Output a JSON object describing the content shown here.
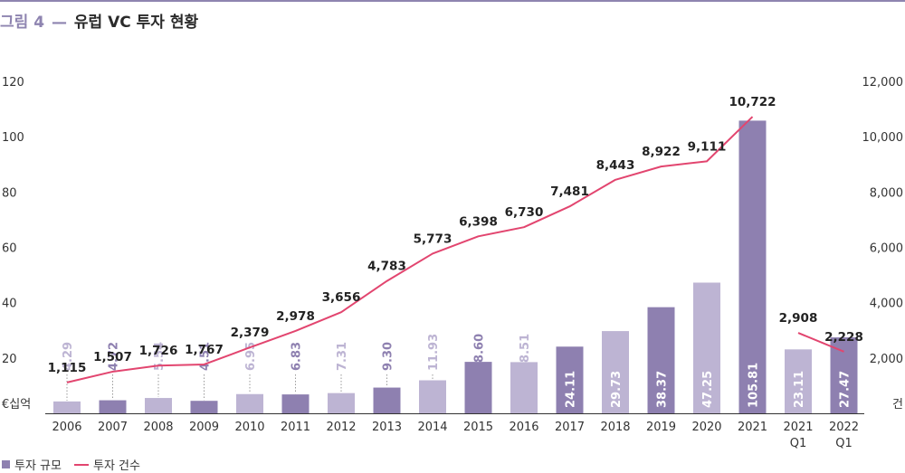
{
  "title": {
    "prefix": "그림 4",
    "dash": "—",
    "text": "유럽 VC 투자 현황"
  },
  "colors": {
    "dark_bar": "#8e80b0",
    "light_bar": "#bdb4d3",
    "line": "#e2456f",
    "accent": "#8e84b0"
  },
  "legend": {
    "bar_label": "투자 규모",
    "line_label": "투자 건수"
  },
  "chart_data": {
    "type": "bar",
    "categories": [
      [
        "2006"
      ],
      [
        "2007"
      ],
      [
        "2008"
      ],
      [
        "2009"
      ],
      [
        "2010"
      ],
      [
        "2011"
      ],
      [
        "2012"
      ],
      [
        "2013"
      ],
      [
        "2014"
      ],
      [
        "2015"
      ],
      [
        "2016"
      ],
      [
        "2017"
      ],
      [
        "2018"
      ],
      [
        "2019"
      ],
      [
        "2020"
      ],
      [
        "2021"
      ],
      [
        "2021",
        "Q1"
      ],
      [
        "2022",
        "Q1"
      ]
    ],
    "series": [
      {
        "name": "투자 규모",
        "axis": "left",
        "type": "bar",
        "values": [
          4.29,
          4.72,
          5.54,
          4.51,
          6.95,
          6.83,
          7.31,
          9.3,
          11.93,
          18.6,
          18.51,
          24.11,
          29.73,
          38.37,
          47.25,
          105.81,
          23.11,
          27.47
        ],
        "labels": [
          "4.29",
          "4.72",
          "5.54",
          "4.51",
          "6.95",
          "6.83",
          "7.31",
          "9.30",
          "11.93",
          "18.60",
          "18.51",
          "24.11",
          "29.73",
          "38.37",
          "47.25",
          "105.81",
          "23.11",
          "27.47"
        ],
        "shade": [
          "light",
          "dark",
          "light",
          "dark",
          "light",
          "dark",
          "light",
          "dark",
          "light",
          "dark",
          "light",
          "dark",
          "light",
          "dark",
          "light",
          "dark",
          "light",
          "dark"
        ]
      },
      {
        "name": "투자 건수",
        "axis": "right",
        "type": "line",
        "values": [
          1115,
          1507,
          1726,
          1767,
          2379,
          2978,
          3656,
          4783,
          5773,
          6398,
          6730,
          7481,
          8443,
          8922,
          9111,
          10722,
          2908,
          2228
        ],
        "labels": [
          "1,115",
          "1,507",
          "1,726",
          "1,767",
          "2,379",
          "2,978",
          "3,656",
          "4,783",
          "5,773",
          "6,398",
          "6,730",
          "7,481",
          "8,443",
          "8,922",
          "9,111",
          "10,722",
          "2,908",
          "2,228"
        ],
        "segments": [
          [
            0,
            15
          ],
          [
            16,
            17
          ]
        ]
      }
    ],
    "y_left": {
      "label": "€십억",
      "ticks": [
        "20",
        "40",
        "60",
        "80",
        "100",
        "120"
      ],
      "lim": [
        0,
        120
      ]
    },
    "y_right": {
      "label": "건",
      "ticks": [
        "2,000",
        "4,000",
        "6,000",
        "8,000",
        "10,000",
        "12,000"
      ],
      "lim": [
        0,
        12000
      ]
    },
    "grid": false,
    "legend_position": "bottom-left"
  }
}
